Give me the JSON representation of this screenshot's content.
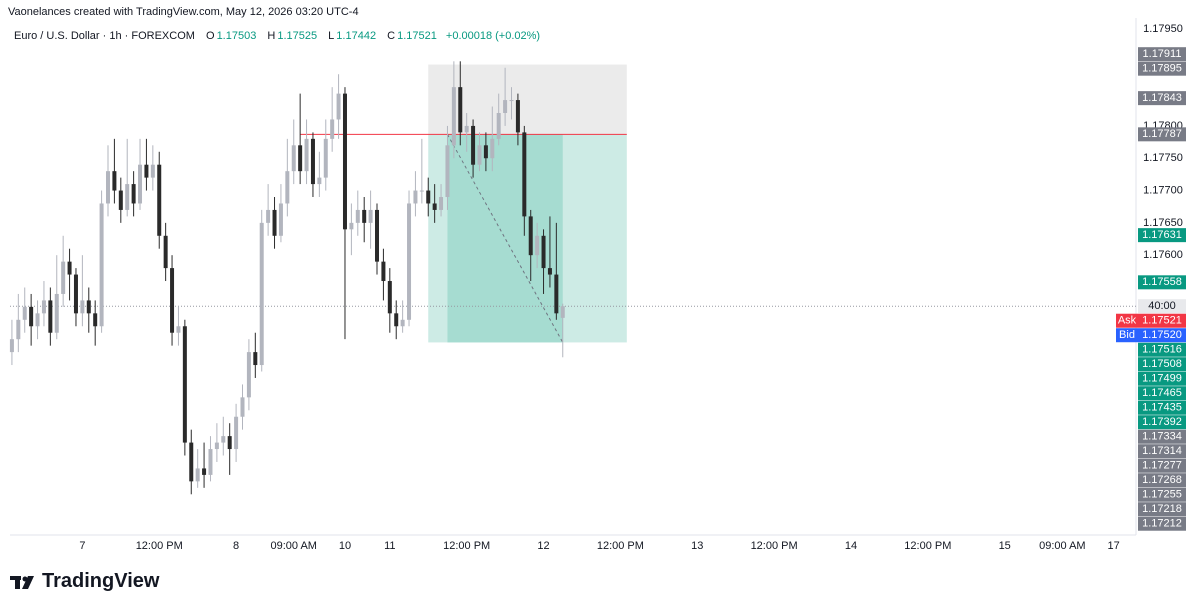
{
  "header": "Vaonelances created with TradingView.com, May 12, 2026 03:20 UTC-4",
  "brand": "TradingView",
  "chart_data": {
    "type": "candlestick",
    "title": "Euro / U.S. Dollar · 1h · FOREXCOM",
    "legend_keys": [
      "O",
      "H",
      "L",
      "C"
    ],
    "change": "+0.00018 (+0.02%)",
    "up_color": "#b2b5be",
    "down_color": "#2a2a2a",
    "x": [
      0,
      1,
      2,
      3,
      4,
      5,
      6,
      7,
      8,
      9,
      10,
      11,
      12,
      13,
      14,
      15,
      16,
      17,
      18,
      19,
      20,
      21,
      22,
      23,
      24,
      25,
      26,
      27,
      28,
      29,
      30,
      31,
      32,
      33,
      34,
      35,
      36,
      37,
      38,
      39,
      40,
      41,
      42,
      43,
      44,
      45,
      46,
      47,
      48,
      49,
      50,
      51,
      52,
      53,
      54,
      55,
      56,
      57,
      58,
      59,
      60,
      61,
      62,
      63,
      64,
      65,
      66,
      67,
      68,
      69,
      70,
      71,
      72,
      73,
      74,
      75,
      76,
      77,
      78,
      79,
      80,
      81,
      82,
      83,
      84,
      85,
      86
    ],
    "open": [
      1.1745,
      1.1747,
      1.175,
      1.1752,
      1.1749,
      1.1751,
      1.1753,
      1.1748,
      1.1754,
      1.1759,
      1.1757,
      1.1751,
      1.1753,
      1.1751,
      1.1749,
      1.1768,
      1.1773,
      1.177,
      1.1767,
      1.1771,
      1.1768,
      1.1774,
      1.1772,
      1.1774,
      1.1763,
      1.1758,
      1.1748,
      1.1749,
      1.1731,
      1.1725,
      1.1727,
      1.1726,
      1.173,
      1.1731,
      1.1732,
      1.173,
      1.1735,
      1.1738,
      1.1745,
      1.1743,
      1.1765,
      1.1767,
      1.1763,
      1.1768,
      1.1773,
      1.1777,
      1.1773,
      1.1778,
      1.1771,
      1.1772,
      1.1778,
      1.1781,
      1.1785,
      1.1764,
      1.1765,
      1.1767,
      1.1765,
      1.1767,
      1.1759,
      1.1756,
      1.1751,
      1.1749,
      1.175,
      1.1768,
      1.177,
      1.177,
      1.1768,
      1.1767,
      1.1769,
      1.1777,
      1.1786,
      1.1779,
      1.178,
      1.1774,
      1.1777,
      1.1775,
      1.1778,
      1.1782,
      1.1784,
      1.1784,
      1.1779,
      1.1766,
      1.176,
      1.1763,
      1.1758,
      1.1757,
      1.17503
    ],
    "high": [
      1.175,
      1.1754,
      1.1755,
      1.1754,
      1.1753,
      1.1756,
      1.1755,
      1.176,
      1.1763,
      1.1761,
      1.1758,
      1.176,
      1.1755,
      1.1753,
      1.177,
      1.1777,
      1.1778,
      1.1772,
      1.1778,
      1.1773,
      1.1778,
      1.1778,
      1.1777,
      1.1776,
      1.1765,
      1.176,
      1.1752,
      1.175,
      1.1733,
      1.173,
      1.1731,
      1.1732,
      1.1734,
      1.1735,
      1.1734,
      1.1737,
      1.174,
      1.1747,
      1.1748,
      1.1767,
      1.1771,
      1.1769,
      1.1771,
      1.1778,
      1.1781,
      1.1785,
      1.1781,
      1.1779,
      1.1776,
      1.1781,
      1.1786,
      1.1788,
      1.1786,
      1.1768,
      1.177,
      1.1769,
      1.177,
      1.1768,
      1.1761,
      1.1758,
      1.1753,
      1.1753,
      1.177,
      1.1773,
      1.1778,
      1.1772,
      1.1771,
      1.1771,
      1.178,
      1.179,
      1.179,
      1.1782,
      1.1781,
      1.1779,
      1.1779,
      1.1783,
      1.1785,
      1.1789,
      1.1786,
      1.1785,
      1.178,
      1.1767,
      1.1765,
      1.1764,
      1.1766,
      1.1765,
      1.17525
    ],
    "low": [
      1.1743,
      1.1745,
      1.1748,
      1.1746,
      1.1747,
      1.1749,
      1.1746,
      1.1747,
      1.1752,
      1.1753,
      1.1749,
      1.1749,
      1.1748,
      1.1746,
      1.1748,
      1.1766,
      1.1768,
      1.1765,
      1.1766,
      1.1766,
      1.1767,
      1.177,
      1.177,
      1.1761,
      1.1756,
      1.1746,
      1.1746,
      1.1729,
      1.1723,
      1.1724,
      1.1724,
      1.1725,
      1.1728,
      1.1729,
      1.1726,
      1.1728,
      1.1733,
      1.1736,
      1.1741,
      1.1742,
      1.1763,
      1.1761,
      1.1762,
      1.1766,
      1.1771,
      1.1771,
      1.1771,
      1.1769,
      1.1769,
      1.177,
      1.1776,
      1.1778,
      1.1747,
      1.176,
      1.1763,
      1.1762,
      1.1761,
      1.1757,
      1.1753,
      1.1748,
      1.1747,
      1.1748,
      1.1749,
      1.1766,
      1.1768,
      1.1766,
      1.1765,
      1.1766,
      1.1767,
      1.1775,
      1.1777,
      1.1776,
      1.1772,
      1.1773,
      1.1773,
      1.1773,
      1.1777,
      1.178,
      1.1781,
      1.1777,
      1.1763,
      1.1756,
      1.1758,
      1.1754,
      1.1755,
      1.175,
      1.17442
    ],
    "close": [
      1.1747,
      1.175,
      1.1752,
      1.1749,
      1.1751,
      1.1753,
      1.1748,
      1.1754,
      1.1759,
      1.1757,
      1.1751,
      1.1753,
      1.1751,
      1.1749,
      1.1768,
      1.1773,
      1.177,
      1.1767,
      1.1771,
      1.1768,
      1.1774,
      1.1772,
      1.1774,
      1.1763,
      1.1758,
      1.1748,
      1.1749,
      1.1731,
      1.1725,
      1.1727,
      1.1726,
      1.173,
      1.1731,
      1.1732,
      1.173,
      1.1735,
      1.1738,
      1.1745,
      1.1743,
      1.1765,
      1.1767,
      1.1763,
      1.1768,
      1.1773,
      1.1777,
      1.1773,
      1.1778,
      1.1771,
      1.1772,
      1.1778,
      1.1781,
      1.1785,
      1.1764,
      1.1765,
      1.1767,
      1.1765,
      1.1767,
      1.1759,
      1.1756,
      1.1751,
      1.1749,
      1.175,
      1.1768,
      1.177,
      1.177,
      1.1768,
      1.1767,
      1.1769,
      1.1777,
      1.1786,
      1.1779,
      1.178,
      1.1774,
      1.1777,
      1.1775,
      1.1778,
      1.1782,
      1.1784,
      1.1784,
      1.1779,
      1.1766,
      1.176,
      1.1763,
      1.1758,
      1.1757,
      1.1751,
      1.17521
    ],
    "xlim": [
      -0.3,
      175.5
    ],
    "xticks": [
      {
        "value": 11,
        "label": "7"
      },
      {
        "value": 23,
        "label": "12:00 PM"
      },
      {
        "value": 35,
        "label": "8"
      },
      {
        "value": 44,
        "label": "09:00 AM"
      },
      {
        "value": 52,
        "label": "10"
      },
      {
        "value": 59,
        "label": "11"
      },
      {
        "value": 71,
        "label": "12:00 PM"
      },
      {
        "value": 83,
        "label": "12"
      },
      {
        "value": 95,
        "label": "12:00 PM"
      },
      {
        "value": 107,
        "label": "13"
      },
      {
        "value": 119,
        "label": "12:00 PM"
      },
      {
        "value": 131,
        "label": "14"
      },
      {
        "value": 143,
        "label": "12:00 PM"
      },
      {
        "value": 155,
        "label": "15"
      },
      {
        "value": 164,
        "label": "09:00 AM"
      },
      {
        "value": 172,
        "label": "17"
      }
    ],
    "ylim": [
      1.17167,
      1.17967
    ],
    "yticks": [
      {
        "value": 1.1795,
        "label": "1.17950"
      },
      {
        "value": 1.178,
        "label": "1.17800"
      },
      {
        "value": 1.1775,
        "label": "1.17750"
      },
      {
        "value": 1.177,
        "label": "1.17700"
      },
      {
        "value": 1.1765,
        "label": "1.17650"
      },
      {
        "value": 1.176,
        "label": "1.17600"
      }
    ],
    "grid": false,
    "countdown": "40:00",
    "position": {
      "entry": 1.17787,
      "stop": 1.17895,
      "target": 1.17465,
      "x": [
        65,
        96
      ],
      "fill_x": [
        68,
        86
      ],
      "line_start": 45,
      "line_color": "#f23645"
    },
    "price_labels": [
      {
        "value": 1.17911,
        "color": "#787b86"
      },
      {
        "value": 1.17895,
        "color": "#787b86"
      },
      {
        "value": 1.17843,
        "color": "#787b86"
      },
      {
        "value": 1.17787,
        "color": "#787b86"
      },
      {
        "value": 1.17631,
        "color": "#089981"
      },
      {
        "value": 1.17558,
        "color": "#089981"
      },
      {
        "value": 1.17521,
        "tag": "Ask",
        "color": "#f23645"
      },
      {
        "value": 1.1752,
        "label": "1.17520",
        "tag": "Bid",
        "color": "#2962ff"
      },
      {
        "value": 1.17516,
        "color": "#089981"
      },
      {
        "value": 1.17508,
        "color": "#089981"
      },
      {
        "value": 1.17499,
        "color": "#089981"
      },
      {
        "value": 1.17465,
        "color": "#089981"
      },
      {
        "value": 1.17435,
        "color": "#089981"
      },
      {
        "value": 1.17392,
        "color": "#089981"
      },
      {
        "value": 1.17334,
        "color": "#787b86"
      },
      {
        "value": 1.17314,
        "color": "#787b86"
      },
      {
        "value": 1.17277,
        "color": "#787b86"
      },
      {
        "value": 1.17268,
        "color": "#787b86"
      },
      {
        "value": 1.17255,
        "color": "#787b86"
      },
      {
        "value": 1.17218,
        "color": "#787b86"
      },
      {
        "value": 1.17212,
        "color": "#787b86"
      }
    ]
  }
}
